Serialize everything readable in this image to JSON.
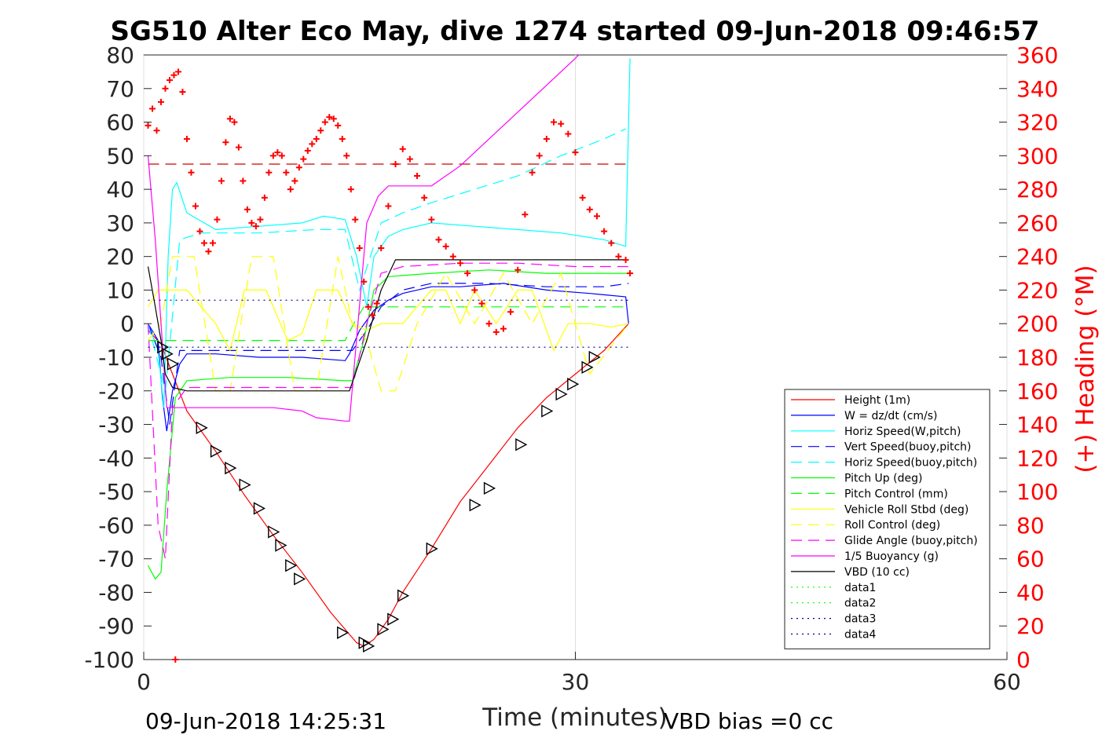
{
  "chart_data": {
    "type": "line",
    "title": "SG510 Alter Eco May, dive 1274 started 09-Jun-2018 09:46:57",
    "xlabel": "Time (minutes)",
    "ylabel": "",
    "ylabel_right": "(+) Heading (°M)",
    "xlim": [
      0,
      60
    ],
    "ylim": [
      -100,
      80
    ],
    "ylim_right": [
      0,
      360
    ],
    "xticks": [
      "0",
      "30",
      "60"
    ],
    "yticks": [
      "80",
      "70",
      "60",
      "50",
      "40",
      "30",
      "20",
      "10",
      "0",
      "-10",
      "-20",
      "-30",
      "-40",
      "-50",
      "-60",
      "-70",
      "-80",
      "-90",
      "-100"
    ],
    "yticks_right": [
      "360",
      "340",
      "320",
      "300",
      "280",
      "260",
      "240",
      "220",
      "200",
      "180",
      "160",
      "140",
      "120",
      "100",
      "80",
      "60",
      "40",
      "20",
      "0"
    ],
    "grid": "x-only",
    "legend_position": "lower-right",
    "footer_left": "09-Jun-2018 14:25:31",
    "footer_right": "VBD bias =0 cc",
    "colors": {
      "height": "#ff0000",
      "w": "#0000ff",
      "horiz": "#00ffff",
      "pitch": "#00ff00",
      "roll": "#ffff00",
      "glide": "#ff00ff",
      "vbd": "#000000",
      "data3": "#00008b"
    },
    "series": [
      {
        "name": "Height (1m)",
        "color": "#ff0000",
        "style": "solid",
        "x": [
          0.3,
          1.2,
          2.0,
          3,
          5,
          7,
          9,
          11,
          13,
          14,
          14.8,
          15.3,
          16,
          17,
          18,
          20,
          22,
          24,
          26,
          28,
          30,
          32,
          33.7
        ],
        "y": [
          -2,
          -6,
          -15,
          -26,
          -38,
          -51,
          -63,
          -74,
          -86,
          -91,
          -95,
          -96,
          -94,
          -88,
          -80,
          -67,
          -53,
          -42,
          -31,
          -22,
          -15,
          -8,
          0
        ]
      },
      {
        "name": "W = dz/dt (cm/s)",
        "color": "#0000ff",
        "style": "solid",
        "x": [
          0.3,
          1.0,
          1.3,
          1.6,
          2.0,
          2.5,
          3,
          5,
          8,
          11,
          14,
          14.3,
          15,
          16,
          17,
          18,
          20,
          22,
          25,
          28,
          31,
          33.5,
          33.7
        ],
        "y": [
          0,
          -5,
          -22,
          -32,
          -20,
          -12,
          -9,
          -9,
          -10,
          -10,
          -11,
          -9,
          -2,
          4,
          7,
          9,
          11,
          11,
          12,
          10,
          9,
          8,
          0
        ]
      },
      {
        "name": "Horiz Speed(W,pitch)",
        "color": "#00ffff",
        "style": "solid",
        "x": [
          0.3,
          1.0,
          1.4,
          1.7,
          2.0,
          2.3,
          3,
          5,
          8,
          11,
          12.5,
          14,
          14.8,
          15.5,
          16,
          17,
          18,
          20,
          23,
          26,
          29,
          32,
          33.5,
          33.8
        ],
        "y": [
          0,
          -8,
          -25,
          20,
          40,
          42,
          33,
          28,
          29,
          30,
          32,
          31,
          20,
          5,
          20,
          26,
          28,
          30,
          29,
          28,
          27,
          25,
          23,
          79
        ]
      },
      {
        "name": "Vert Speed(buoy,pitch)",
        "color": "#0000ff",
        "style": "dash",
        "x": [
          0.3,
          1.2,
          1.8,
          2.5,
          4,
          14,
          14.5,
          15.5,
          16.5,
          18,
          20,
          24,
          28,
          32,
          33.7
        ],
        "y": [
          0,
          -10,
          -30,
          -8,
          -8,
          -8,
          -8,
          -2,
          5,
          10,
          12,
          12,
          11,
          11,
          12
        ]
      },
      {
        "name": "Horiz Speed(buoy,pitch)",
        "color": "#00ffff",
        "style": "dash",
        "x": [
          0.3,
          1.5,
          2.5,
          4,
          8,
          12,
          14,
          15,
          16.5,
          18,
          20,
          23,
          26,
          29,
          32,
          33.5
        ],
        "y": [
          0,
          -20,
          25,
          27,
          27,
          28,
          28,
          10,
          30,
          33,
          36,
          40,
          44,
          50,
          55,
          58
        ]
      },
      {
        "name": "Pitch Up (deg)",
        "color": "#00ff00",
        "style": "solid",
        "x": [
          0.3,
          0.8,
          1.2,
          1.6,
          2.2,
          3,
          6,
          10,
          14,
          14.5,
          15.3,
          16,
          17,
          20,
          24,
          28,
          32,
          33.7
        ],
        "y": [
          -72,
          -76,
          -74,
          -50,
          -22,
          -17,
          -16,
          -16,
          -17,
          -17,
          -5,
          10,
          14,
          15,
          16,
          15,
          15,
          15
        ]
      },
      {
        "name": "Pitch Control (mm)",
        "color": "#00ff00",
        "style": "dash",
        "x": [
          0.3,
          1.3,
          2,
          4,
          14,
          14.6,
          15.3,
          33.7
        ],
        "y": [
          -5,
          -5,
          -5,
          -5,
          -5,
          0,
          5,
          5
        ]
      },
      {
        "name": "Vehicle Roll Stbd (deg)",
        "color": "#ffff00",
        "style": "solid",
        "x": [
          0.3,
          1.0,
          2.0,
          3.0,
          5.0,
          6.0,
          7.0,
          8.5,
          10,
          11,
          12,
          13.5,
          14.5,
          15.5,
          16.5,
          18,
          20,
          21,
          22,
          23,
          24.5,
          26,
          27,
          28.5,
          29.5,
          31,
          32.5,
          33.7
        ],
        "y": [
          5,
          10,
          10,
          10,
          0,
          -8,
          10,
          10,
          -5,
          -3,
          10,
          10,
          0,
          -2,
          0,
          0,
          10,
          10,
          0,
          10,
          0,
          10,
          10,
          -8,
          0,
          0,
          -1,
          0
        ]
      },
      {
        "name": "Roll Control (deg)",
        "color": "#ffff00",
        "style": "dash",
        "x": [
          0.3,
          1.2,
          2.0,
          3.5,
          5,
          6,
          7.5,
          9,
          10.5,
          12,
          13.5,
          14.5,
          15.5,
          16.5,
          17.5,
          19,
          21,
          23,
          25,
          27,
          29,
          31,
          33.7
        ],
        "y": [
          -5,
          0,
          20,
          20,
          -20,
          -20,
          20,
          20,
          -20,
          -20,
          20,
          0,
          -5,
          -20,
          -20,
          0,
          15,
          0,
          15,
          0,
          15,
          -15,
          0
        ]
      },
      {
        "name": "Glide Angle (buoy,pitch)",
        "color": "#ff00ff",
        "style": "dash",
        "x": [
          0.3,
          1.0,
          1.5,
          2.0,
          3,
          6,
          10,
          14,
          14.5,
          15.5,
          16.5,
          18,
          22,
          26,
          30,
          33.7
        ],
        "y": [
          0,
          -60,
          -70,
          -25,
          -19,
          -19,
          -19,
          -19,
          -19,
          0,
          15,
          17,
          18,
          18,
          17,
          17
        ]
      },
      {
        "name": "1/5 Buoyancy (g)",
        "color": "#ff00ff",
        "style": "solid",
        "x": [
          0.3,
          0.8,
          1.2,
          1.6,
          2.0,
          3,
          6,
          9,
          11,
          12,
          14,
          14.3,
          15.5,
          16.3,
          17,
          20,
          22,
          30,
          33.7
        ],
        "y": [
          50,
          25,
          0,
          -25,
          -25,
          -25,
          -25,
          -25,
          -26,
          -28,
          -29,
          -29,
          30,
          38,
          41,
          41,
          47,
          79,
          95
        ]
      },
      {
        "name": "VBD (10 cc)",
        "color": "#000000",
        "style": "solid",
        "x": [
          0.3,
          0.8,
          1.2,
          1.5,
          2.0,
          3,
          6,
          10,
          14,
          14.3,
          15.5,
          16.5,
          17.5,
          20,
          25,
          30,
          33.7
        ],
        "y": [
          17,
          5,
          -5,
          -15,
          -19,
          -20,
          -20,
          -20,
          -20,
          -20,
          -5,
          10,
          19,
          19,
          19,
          19,
          19
        ]
      },
      {
        "name": "data1",
        "color": "#00ff00",
        "style": "dot",
        "x": [],
        "y": []
      },
      {
        "name": "data2",
        "color": "#00ff00",
        "style": "dot",
        "x": [],
        "y": []
      },
      {
        "name": "data3",
        "color": "#00008b",
        "style": "dot",
        "x": [
          0.3,
          33.7
        ],
        "y": [
          7,
          7
        ]
      },
      {
        "name": "data4",
        "color": "#00008b",
        "style": "dot",
        "x": [
          0.3,
          33.7
        ],
        "y": [
          -7,
          -7
        ]
      }
    ],
    "reference_line": {
      "axis": "right",
      "value": 295,
      "color": "#cc0000",
      "style": "dash",
      "x": [
        0.3,
        33.7
      ]
    },
    "heading_markers": {
      "axis": "right",
      "color": "#ff0000",
      "marker": "+",
      "x": [
        0.3,
        0.6,
        0.9,
        1.2,
        1.5,
        1.8,
        2.1,
        2.4,
        2.7,
        3.0,
        3.3,
        3.6,
        3.9,
        4.2,
        4.5,
        4.8,
        5.1,
        5.4,
        5.7,
        6.0,
        6.3,
        6.6,
        6.9,
        7.2,
        7.5,
        7.8,
        8.1,
        8.4,
        8.7,
        9.0,
        9.3,
        9.6,
        9.9,
        10.2,
        10.5,
        10.8,
        11.1,
        11.4,
        11.7,
        12.0,
        12.3,
        12.6,
        12.9,
        13.2,
        13.5,
        13.8,
        14.1,
        14.4,
        14.7,
        15.0,
        15.3,
        15.6,
        15.9,
        16.2,
        16.5,
        17.0,
        17.5,
        18.0,
        18.5,
        19.0,
        19.5,
        20.0,
        20.5,
        21.0,
        21.5,
        22.0,
        22.5,
        23.0,
        23.5,
        24.0,
        24.5,
        25.0,
        25.5,
        26.0,
        26.5,
        27.0,
        27.5,
        28.0,
        28.5,
        29.0,
        29.5,
        30.0,
        30.5,
        31.0,
        31.5,
        32.0,
        32.5,
        33.0,
        33.5,
        33.8,
        2.2
      ],
      "y": [
        318,
        328,
        315,
        332,
        340,
        345,
        348,
        350,
        338,
        310,
        290,
        270,
        255,
        248,
        243,
        248,
        262,
        285,
        308,
        322,
        320,
        305,
        285,
        268,
        260,
        258,
        262,
        275,
        290,
        300,
        302,
        300,
        290,
        280,
        285,
        293,
        298,
        303,
        307,
        310,
        315,
        320,
        323,
        322,
        318,
        310,
        300,
        280,
        262,
        245,
        225,
        210,
        205,
        212,
        245,
        270,
        295,
        304,
        298,
        288,
        275,
        262,
        250,
        246,
        240,
        236,
        230,
        220,
        212,
        200,
        195,
        197,
        207,
        232,
        265,
        290,
        300,
        310,
        320,
        319,
        313,
        302,
        275,
        268,
        264,
        255,
        248,
        240,
        238,
        230,
        0
      ]
    },
    "descent_ascent_triangles": {
      "color": "#000000",
      "marker": "triangle",
      "x": [
        1.3,
        1.6,
        2.0,
        4.0,
        5.0,
        6.0,
        7.0,
        8.0,
        9.0,
        9.5,
        10.2,
        10.8,
        13.8,
        15.3,
        15.6,
        16.6,
        17.3,
        18.0,
        20.0,
        23.0,
        24.0,
        26.2,
        28.0,
        29.0,
        29.8,
        30.8,
        31.3
      ],
      "y": [
        -7,
        -9,
        -12,
        -31,
        -38,
        -43,
        -48,
        -55,
        -62,
        -66,
        -72,
        -76,
        -92,
        -95,
        -96,
        -91,
        -88,
        -81,
        -67,
        -54,
        -49,
        -36,
        -26,
        -21,
        -18,
        -13,
        -10
      ]
    }
  }
}
